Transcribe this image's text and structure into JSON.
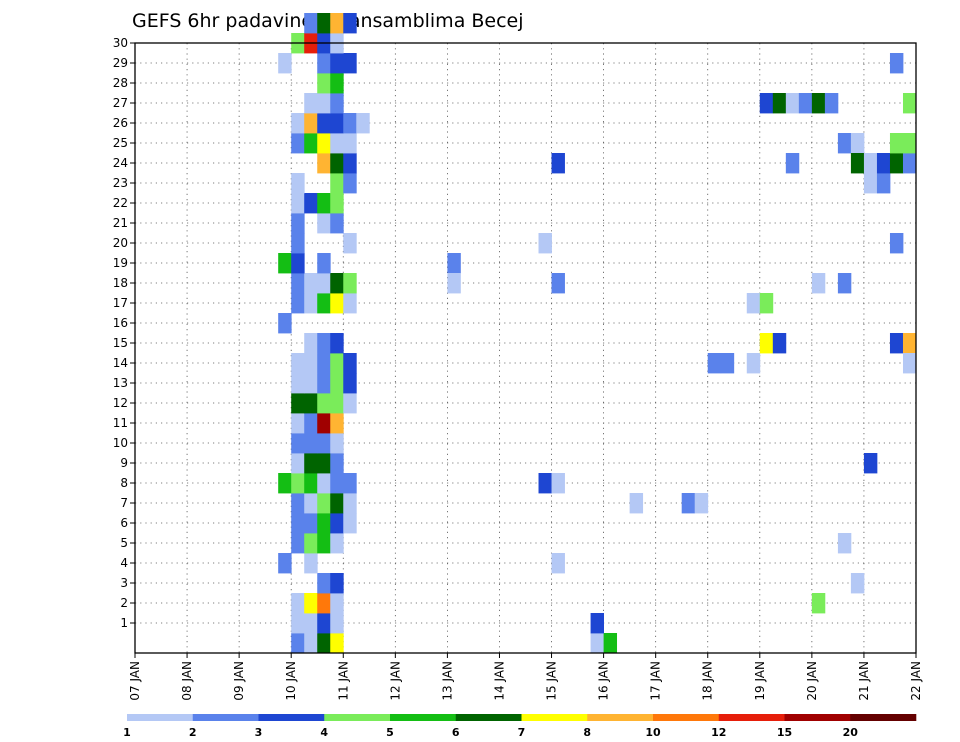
{
  "chart_data": {
    "type": "heatmap",
    "title": "GEFS 6hr padavine po ansamblima Becej",
    "y_ticks": [
      "1",
      "2",
      "3",
      "4",
      "5",
      "6",
      "7",
      "8",
      "9",
      "10",
      "11",
      "12",
      "13",
      "14",
      "15",
      "16",
      "17",
      "18",
      "19",
      "20",
      "21",
      "22",
      "23",
      "24",
      "25",
      "26",
      "27",
      "28",
      "29",
      "30"
    ],
    "x_ticks": [
      "07 JAN",
      "08 JAN",
      "09 JAN",
      "10 JAN",
      "11 JAN",
      "12 JAN",
      "13 JAN",
      "14 JAN",
      "15 JAN",
      "16 JAN",
      "17 JAN",
      "18 JAN",
      "19 JAN",
      "20 JAN",
      "21 JAN",
      "22 JAN"
    ],
    "x_range": [
      "07 JAN",
      "22 JAN"
    ],
    "y_range": [
      0,
      30
    ],
    "x_step_hours": 6,
    "grid": true,
    "legend": "bottom",
    "colorbar": {
      "labels": [
        "1",
        "2",
        "3",
        "4",
        "5",
        "6",
        "7",
        "8",
        "10",
        "12",
        "15",
        "20"
      ],
      "colors": [
        "#b4c8f5",
        "#5a82eb",
        "#1e46d2",
        "#7aec5a",
        "#14be14",
        "#006400",
        "#ffff00",
        "#ffb432",
        "#ff780a",
        "#e61e0a",
        "#a00000",
        "#640000"
      ]
    },
    "cells_legend": "each cell: [day, 6h slot 0-3, member, colour class 0-11]",
    "cells": [
      [
        10,
        0,
        0,
        1
      ],
      [
        10,
        1,
        0,
        0
      ],
      [
        10,
        2,
        0,
        5
      ],
      [
        10,
        3,
        0,
        6
      ],
      [
        10,
        0,
        1,
        0
      ],
      [
        10,
        1,
        1,
        0
      ],
      [
        10,
        2,
        1,
        2
      ],
      [
        10,
        3,
        1,
        0
      ],
      [
        10,
        0,
        2,
        0
      ],
      [
        10,
        1,
        2,
        6
      ],
      [
        10,
        2,
        2,
        8
      ],
      [
        10,
        3,
        2,
        0
      ],
      [
        10,
        2,
        3,
        1
      ],
      [
        10,
        3,
        3,
        2
      ],
      [
        9,
        3,
        4,
        1
      ],
      [
        10,
        1,
        4,
        0
      ],
      [
        10,
        0,
        5,
        1
      ],
      [
        10,
        1,
        5,
        3
      ],
      [
        10,
        2,
        5,
        4
      ],
      [
        10,
        3,
        5,
        0
      ],
      [
        10,
        0,
        6,
        1
      ],
      [
        10,
        1,
        6,
        1
      ],
      [
        10,
        2,
        6,
        4
      ],
      [
        10,
        3,
        6,
        2
      ],
      [
        10,
        4,
        6,
        0
      ],
      [
        10,
        0,
        7,
        1
      ],
      [
        10,
        1,
        7,
        0
      ],
      [
        10,
        2,
        7,
        3
      ],
      [
        10,
        3,
        7,
        5
      ],
      [
        10,
        4,
        7,
        0
      ],
      [
        9,
        3,
        8,
        4
      ],
      [
        10,
        0,
        8,
        3
      ],
      [
        10,
        1,
        8,
        4
      ],
      [
        10,
        2,
        8,
        0
      ],
      [
        10,
        3,
        8,
        1
      ],
      [
        10,
        4,
        8,
        1
      ],
      [
        10,
        0,
        9,
        0
      ],
      [
        10,
        1,
        9,
        5
      ],
      [
        10,
        2,
        9,
        5
      ],
      [
        10,
        3,
        9,
        1
      ],
      [
        10,
        0,
        10,
        1
      ],
      [
        10,
        1,
        10,
        1
      ],
      [
        10,
        2,
        10,
        1
      ],
      [
        10,
        3,
        10,
        0
      ],
      [
        10,
        0,
        11,
        0
      ],
      [
        10,
        1,
        11,
        1
      ],
      [
        10,
        2,
        11,
        10
      ],
      [
        10,
        3,
        11,
        7
      ],
      [
        10,
        0,
        12,
        5
      ],
      [
        10,
        1,
        12,
        5
      ],
      [
        10,
        2,
        12,
        3
      ],
      [
        10,
        3,
        12,
        3
      ],
      [
        10,
        4,
        12,
        0
      ],
      [
        10,
        0,
        13,
        0
      ],
      [
        10,
        1,
        13,
        0
      ],
      [
        10,
        2,
        13,
        1
      ],
      [
        10,
        3,
        13,
        3
      ],
      [
        10,
        4,
        13,
        2
      ],
      [
        10,
        0,
        14,
        0
      ],
      [
        10,
        1,
        14,
        0
      ],
      [
        10,
        2,
        14,
        1
      ],
      [
        10,
        3,
        14,
        3
      ],
      [
        10,
        4,
        14,
        2
      ],
      [
        10,
        1,
        15,
        0
      ],
      [
        10,
        2,
        15,
        1
      ],
      [
        10,
        3,
        15,
        2
      ],
      [
        9,
        3,
        16,
        1
      ],
      [
        10,
        0,
        17,
        1
      ],
      [
        10,
        1,
        17,
        0
      ],
      [
        10,
        2,
        17,
        4
      ],
      [
        10,
        3,
        17,
        6
      ],
      [
        10,
        4,
        17,
        0
      ],
      [
        10,
        0,
        18,
        1
      ],
      [
        10,
        1,
        18,
        0
      ],
      [
        10,
        2,
        18,
        0
      ],
      [
        10,
        3,
        18,
        5
      ],
      [
        10,
        4,
        18,
        3
      ],
      [
        9,
        3,
        19,
        4
      ],
      [
        10,
        0,
        19,
        2
      ],
      [
        10,
        2,
        19,
        1
      ],
      [
        10,
        0,
        20,
        1
      ],
      [
        10,
        4,
        20,
        0
      ],
      [
        10,
        0,
        21,
        1
      ],
      [
        10,
        2,
        21,
        0
      ],
      [
        10,
        3,
        21,
        1
      ],
      [
        10,
        0,
        22,
        0
      ],
      [
        10,
        1,
        22,
        2
      ],
      [
        10,
        2,
        22,
        4
      ],
      [
        10,
        3,
        22,
        3
      ],
      [
        10,
        0,
        23,
        0
      ],
      [
        10,
        3,
        23,
        3
      ],
      [
        10,
        4,
        23,
        1
      ],
      [
        10,
        2,
        24,
        7
      ],
      [
        10,
        3,
        24,
        5
      ],
      [
        10,
        4,
        24,
        2
      ],
      [
        10,
        0,
        25,
        1
      ],
      [
        10,
        1,
        25,
        4
      ],
      [
        10,
        2,
        25,
        6
      ],
      [
        10,
        3,
        25,
        0
      ],
      [
        10,
        4,
        25,
        0
      ],
      [
        10,
        0,
        26,
        0
      ],
      [
        10,
        1,
        26,
        7
      ],
      [
        10,
        2,
        26,
        2
      ],
      [
        10,
        3,
        26,
        2
      ],
      [
        10,
        4,
        26,
        1
      ],
      [
        10,
        5,
        26,
        0
      ],
      [
        10,
        1,
        27,
        0
      ],
      [
        10,
        2,
        27,
        0
      ],
      [
        10,
        3,
        27,
        1
      ],
      [
        10,
        2,
        28,
        3
      ],
      [
        10,
        3,
        28,
        4
      ],
      [
        9,
        3,
        29,
        0
      ],
      [
        10,
        2,
        29,
        1
      ],
      [
        10,
        3,
        29,
        2
      ],
      [
        10,
        4,
        29,
        2
      ],
      [
        10,
        0,
        30,
        3
      ],
      [
        10,
        1,
        30,
        9
      ],
      [
        10,
        2,
        30,
        2
      ],
      [
        10,
        3,
        30,
        0
      ],
      [
        10,
        1,
        31,
        1
      ],
      [
        10,
        2,
        31,
        5
      ],
      [
        10,
        3,
        31,
        7
      ],
      [
        10,
        4,
        31,
        2
      ],
      [
        15,
        3,
        0,
        0
      ],
      [
        16,
        0,
        0,
        4
      ],
      [
        15,
        3,
        1,
        2
      ],
      [
        15,
        0,
        4,
        0
      ],
      [
        14,
        3,
        8,
        2
      ],
      [
        15,
        0,
        8,
        0
      ],
      [
        16,
        2,
        7,
        0
      ],
      [
        17,
        2,
        7,
        1
      ],
      [
        17,
        3,
        7,
        0
      ],
      [
        13,
        0,
        19,
        1
      ],
      [
        13,
        0,
        18,
        0
      ],
      [
        15,
        0,
        18,
        1
      ],
      [
        14,
        3,
        20,
        0
      ],
      [
        15,
        0,
        24,
        2
      ],
      [
        18,
        0,
        14,
        1
      ],
      [
        18,
        1,
        14,
        1
      ],
      [
        18,
        3,
        14,
        0
      ],
      [
        19,
        0,
        15,
        6
      ],
      [
        19,
        1,
        15,
        2
      ],
      [
        18,
        3,
        17,
        0
      ],
      [
        19,
        0,
        17,
        3
      ],
      [
        19,
        0,
        27,
        2
      ],
      [
        19,
        1,
        27,
        5
      ],
      [
        19,
        2,
        27,
        0
      ],
      [
        19,
        3,
        27,
        1
      ],
      [
        20,
        0,
        27,
        5
      ],
      [
        20,
        1,
        27,
        1
      ],
      [
        19,
        2,
        24,
        1
      ],
      [
        20,
        0,
        18,
        0
      ],
      [
        20,
        2,
        18,
        1
      ],
      [
        20,
        0,
        2,
        3
      ],
      [
        20,
        3,
        3,
        0
      ],
      [
        20,
        2,
        5,
        0
      ],
      [
        21,
        0,
        9,
        2
      ],
      [
        20,
        2,
        25,
        1
      ],
      [
        20,
        3,
        25,
        0
      ],
      [
        21,
        0,
        23,
        0
      ],
      [
        21,
        1,
        23,
        1
      ],
      [
        20,
        3,
        24,
        5
      ],
      [
        21,
        0,
        24,
        0
      ],
      [
        21,
        1,
        24,
        2
      ],
      [
        21,
        2,
        24,
        5
      ],
      [
        21,
        3,
        24,
        1
      ],
      [
        21,
        2,
        25,
        3
      ],
      [
        21,
        3,
        25,
        3
      ],
      [
        21,
        2,
        29,
        1
      ],
      [
        21,
        2,
        20,
        1
      ],
      [
        21,
        2,
        15,
        2
      ],
      [
        21,
        3,
        15,
        7
      ],
      [
        21,
        3,
        14,
        0
      ],
      [
        21,
        3,
        27,
        3
      ]
    ]
  }
}
